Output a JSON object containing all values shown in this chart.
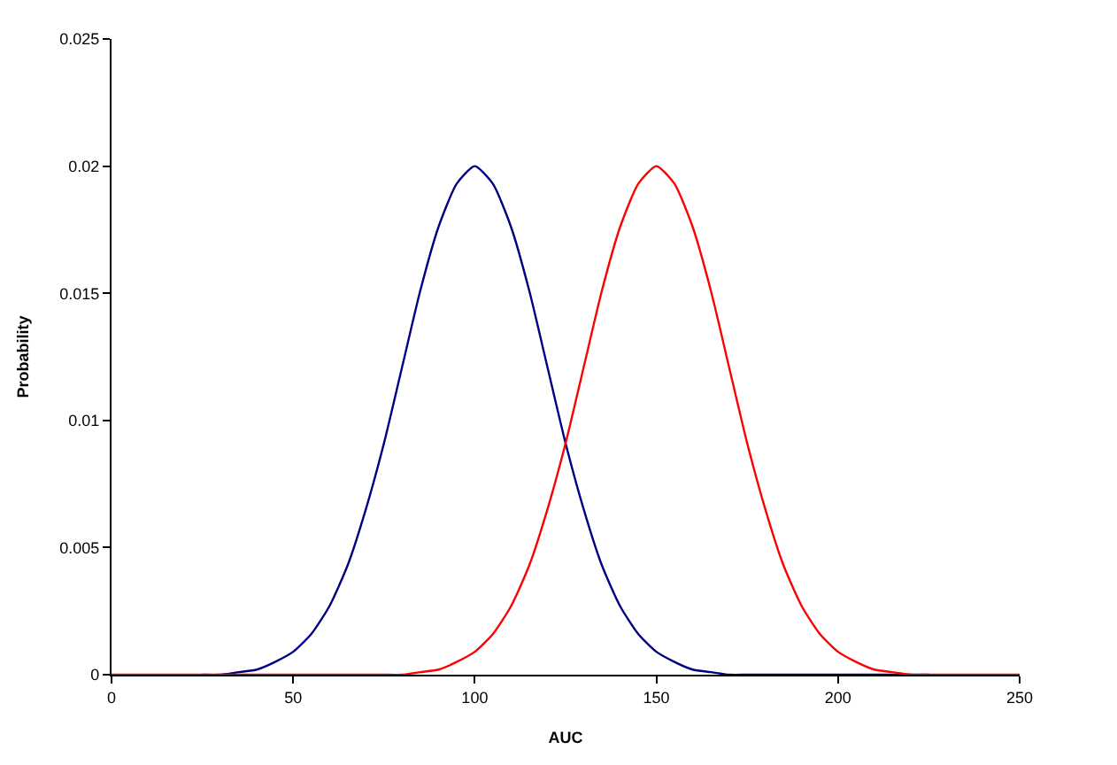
{
  "chart_data": {
    "type": "line",
    "xlabel": "AUC",
    "ylabel": "Probability",
    "x": [
      0,
      5,
      10,
      15,
      20,
      25,
      30,
      35,
      40,
      45,
      50,
      55,
      60,
      65,
      70,
      75,
      80,
      85,
      90,
      95,
      100,
      105,
      110,
      115,
      120,
      125,
      130,
      135,
      140,
      145,
      150,
      155,
      160,
      165,
      170,
      175,
      180,
      185,
      190,
      195,
      200,
      205,
      210,
      215,
      220,
      225,
      230,
      235,
      240,
      245,
      250
    ],
    "series": [
      {
        "color": "#000080",
        "values": [
          null,
          null,
          null,
          null,
          null,
          0,
          0,
          0.0001,
          0.0002,
          0.0005,
          0.0009,
          0.0016,
          0.0027,
          0.0043,
          0.0065,
          0.0091,
          0.0121,
          0.0151,
          0.0176,
          0.0193,
          0.02,
          0.0193,
          0.0176,
          0.0151,
          0.0121,
          0.0091,
          0.0065,
          0.0043,
          0.0027,
          0.0016,
          0.0009,
          0.0005,
          0.0002,
          0.0001,
          0,
          0,
          0,
          0,
          0,
          0,
          0,
          0,
          0,
          0,
          0,
          0,
          null,
          null,
          null,
          null,
          null
        ]
      },
      {
        "color": "#ff0000",
        "values": [
          0,
          0,
          0,
          0,
          0,
          0,
          0,
          0,
          0,
          0,
          0,
          0,
          0,
          0,
          0,
          0,
          0,
          0.0001,
          0.0002,
          0.0005,
          0.0009,
          0.0016,
          0.0027,
          0.0043,
          0.0065,
          0.0091,
          0.0121,
          0.0151,
          0.0176,
          0.0193,
          0.02,
          0.0193,
          0.0176,
          0.0151,
          0.0121,
          0.0091,
          0.0065,
          0.0043,
          0.0027,
          0.0016,
          0.0009,
          0.0005,
          0.0002,
          0.0001,
          0,
          0,
          0,
          0,
          0,
          0,
          0
        ]
      }
    ],
    "xlim": [
      0,
      250
    ],
    "xticks": [
      0,
      50,
      100,
      150,
      200,
      250
    ],
    "ylim": [
      0,
      0.025
    ],
    "yticks": [
      0,
      0.005,
      0.01,
      0.015,
      0.02,
      0.025
    ],
    "marker": "none",
    "line_style": "solid"
  }
}
